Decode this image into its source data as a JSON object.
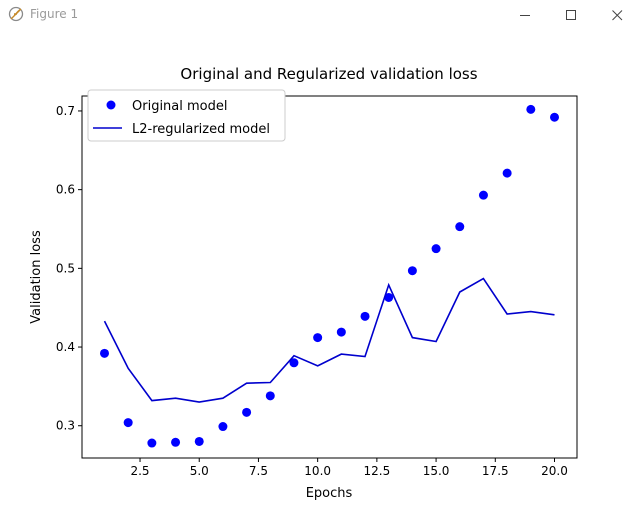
{
  "window": {
    "title": "Figure 1"
  },
  "icons": {
    "app": "feather-icon",
    "minimize": "minimize-icon",
    "maximize": "maximize-icon",
    "close": "close-icon"
  },
  "chart_data": {
    "type": "scatter",
    "title": "Original and Regularized validation loss",
    "xlabel": "Epochs",
    "ylabel": "Validation loss",
    "xlim": [
      0.05,
      20.95
    ],
    "ylim": [
      0.259,
      0.719
    ],
    "xticks": [
      2.5,
      5.0,
      7.5,
      10.0,
      12.5,
      15.0,
      17.5,
      20.0
    ],
    "xtick_labels": [
      "2.5",
      "5.0",
      "7.5",
      "10.0",
      "12.5",
      "15.0",
      "17.5",
      "20.0"
    ],
    "yticks": [
      0.3,
      0.4,
      0.5,
      0.6,
      0.7
    ],
    "ytick_labels": [
      "0.3",
      "0.4",
      "0.5",
      "0.6",
      "0.7"
    ],
    "grid": false,
    "legend_position": "top-left",
    "series": [
      {
        "name": "Original model",
        "style": "markers",
        "color": "#0000ff",
        "x": [
          1,
          2,
          3,
          4,
          5,
          6,
          7,
          8,
          9,
          10,
          11,
          12,
          13,
          14,
          15,
          16,
          17,
          18,
          19,
          20
        ],
        "y": [
          0.392,
          0.304,
          0.278,
          0.279,
          0.28,
          0.299,
          0.317,
          0.338,
          0.38,
          0.412,
          0.419,
          0.439,
          0.463,
          0.497,
          0.525,
          0.553,
          0.593,
          0.621,
          0.702,
          0.692
        ]
      },
      {
        "name": "L2-regularized model",
        "style": "line",
        "color": "#0000cd",
        "x": [
          1,
          2,
          3,
          4,
          5,
          6,
          7,
          8,
          9,
          10,
          11,
          12,
          13,
          14,
          15,
          16,
          17,
          18,
          19,
          20
        ],
        "y": [
          0.433,
          0.373,
          0.332,
          0.335,
          0.33,
          0.335,
          0.354,
          0.355,
          0.389,
          0.376,
          0.391,
          0.388,
          0.479,
          0.412,
          0.407,
          0.47,
          0.487,
          0.442,
          0.445,
          0.441
        ]
      }
    ]
  }
}
